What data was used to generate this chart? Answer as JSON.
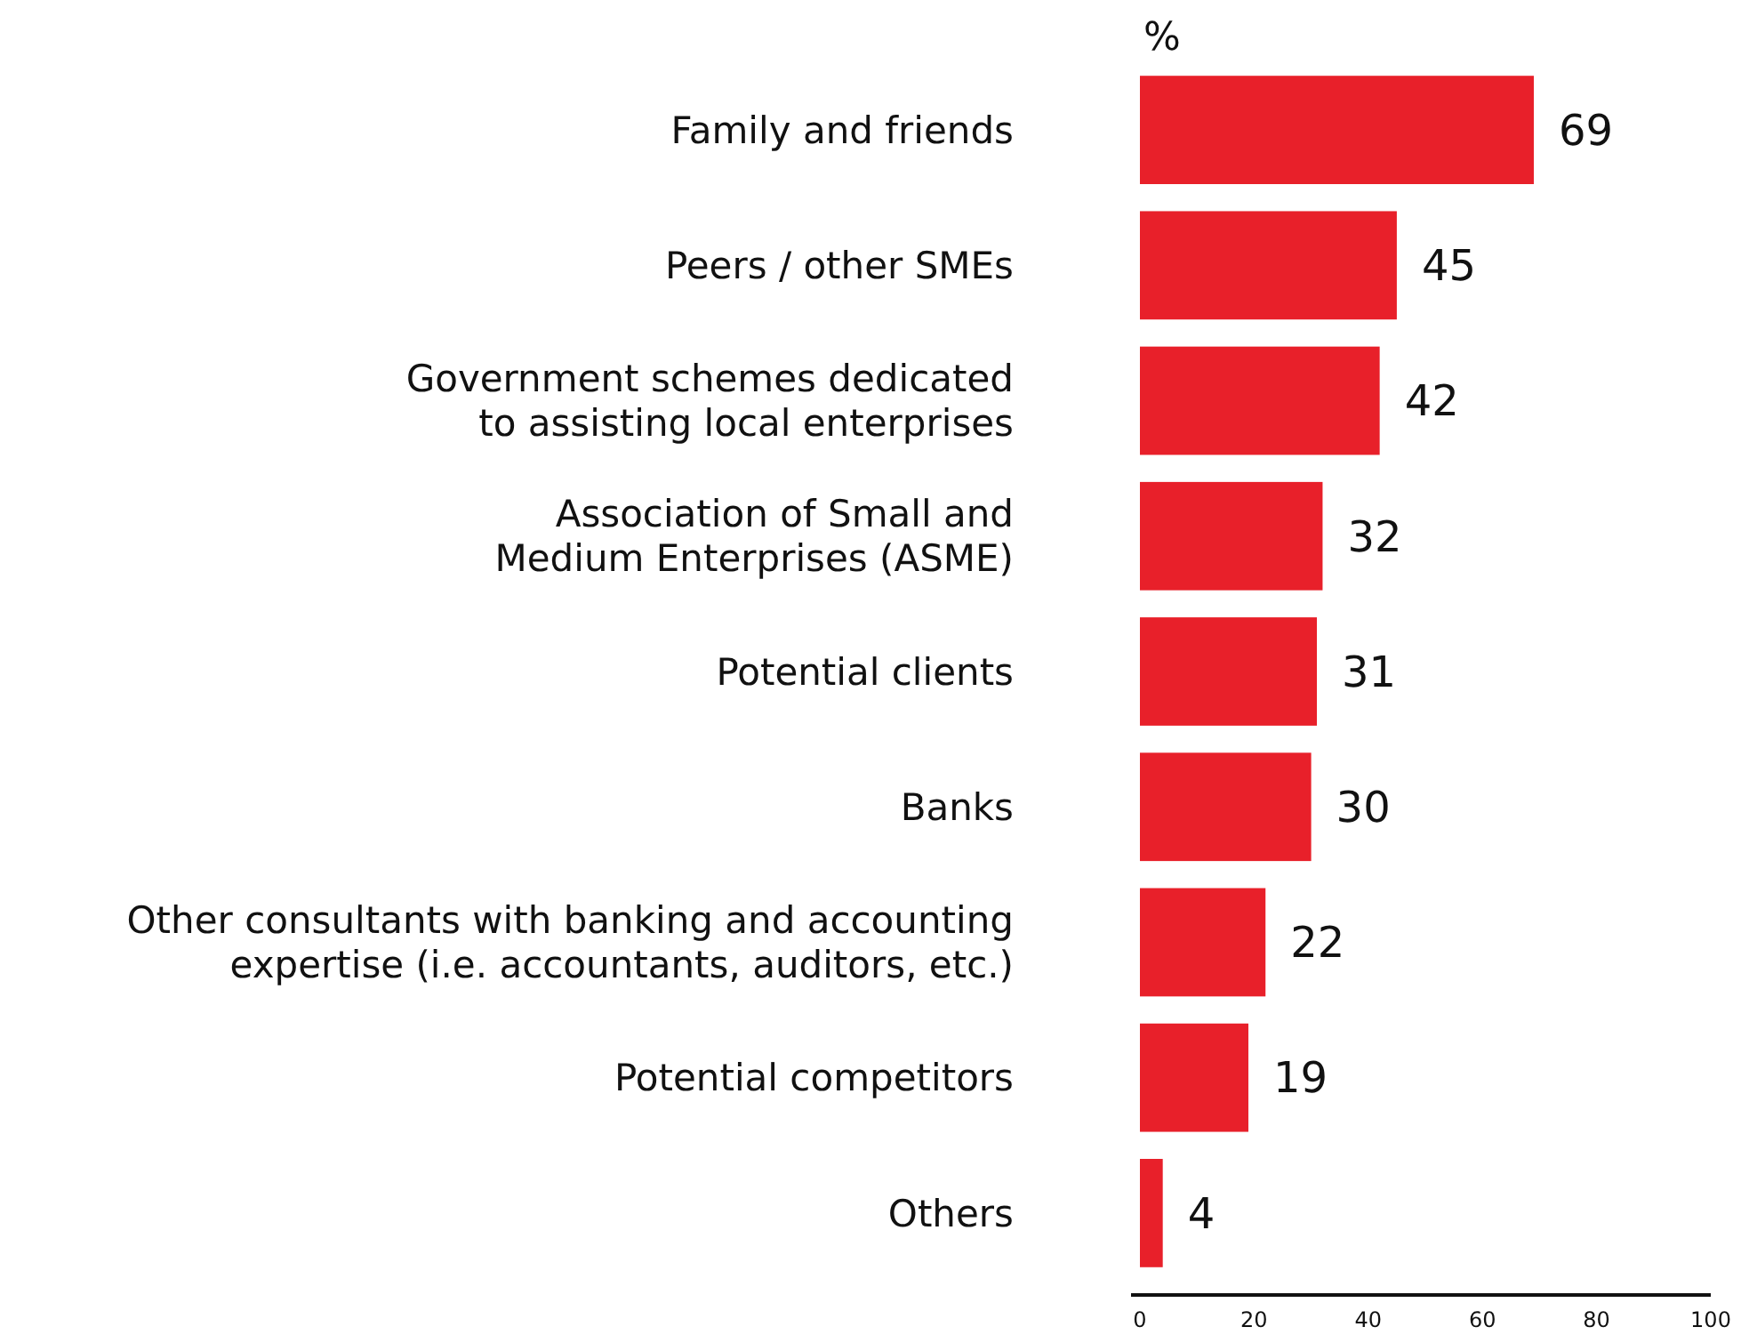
{
  "chart_data": {
    "type": "bar",
    "orientation": "horizontal",
    "xlabel": "%",
    "categories": [
      "Family and friends",
      "Peers / other SMEs",
      "Government schemes dedicated to assisting local enterprises",
      "Association of Small and Medium Enterprises (ASME)",
      "Potential clients",
      "Banks",
      "Other consultants with banking and accounting expertise (i.e. accountants, auditors, etc.)",
      "Potential competitors",
      "Others"
    ],
    "values": [
      69,
      45,
      42,
      32,
      31,
      30,
      22,
      19,
      4
    ],
    "color": "#e8202a",
    "data_labels": true,
    "grid": false,
    "xlim": [
      0,
      100
    ],
    "xticks": [
      0,
      20,
      40,
      60,
      80,
      100
    ]
  }
}
